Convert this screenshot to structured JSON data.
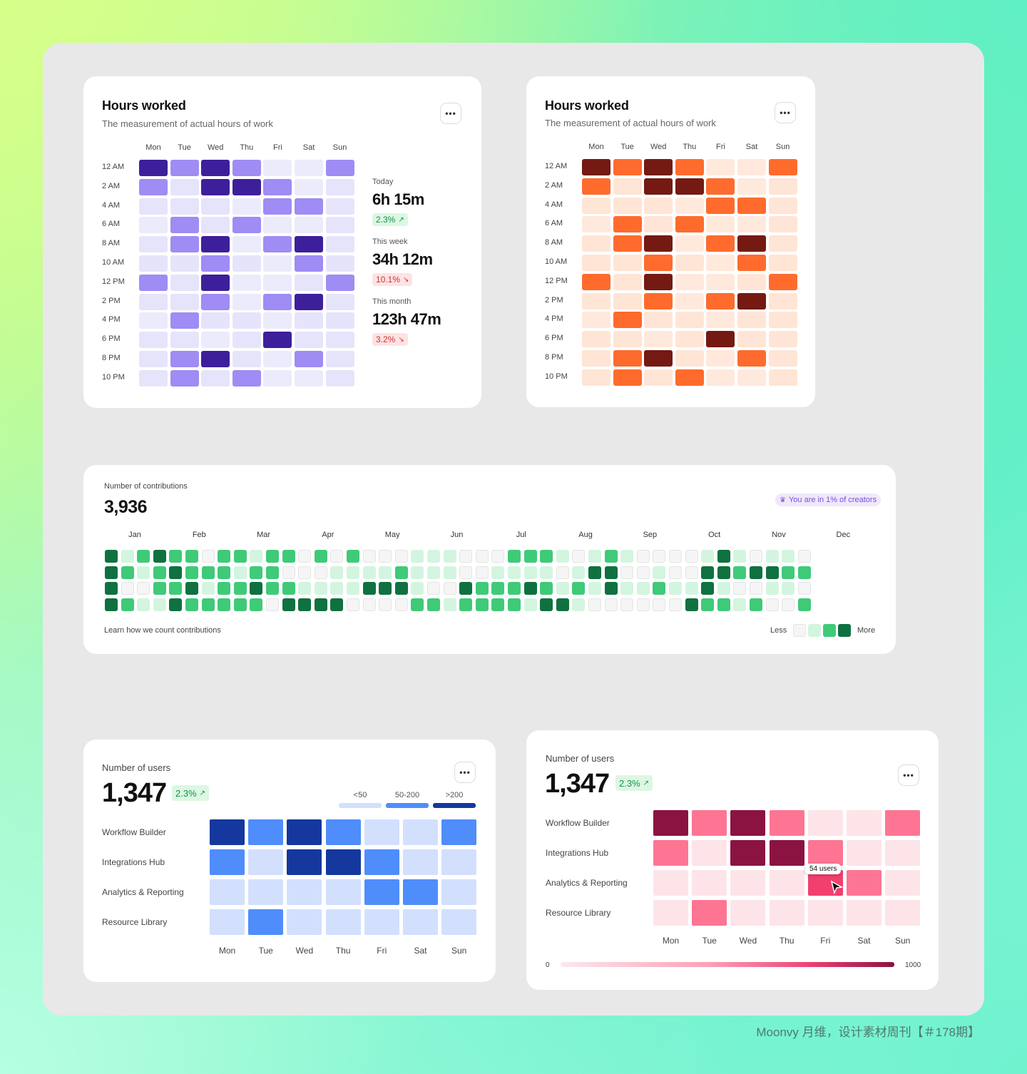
{
  "hours_card_common": {
    "title": "Hours worked",
    "subtitle": "The measurement of actual hours of work",
    "days": [
      "Mon",
      "Tue",
      "Wed",
      "Thu",
      "Fri",
      "Sat",
      "Sun"
    ],
    "hours": [
      "12 AM",
      "2 AM",
      "4 AM",
      "6 AM",
      "8 AM",
      "10 AM",
      "12 PM",
      "2 PM",
      "4 PM",
      "6 PM",
      "8 PM",
      "10 PM"
    ],
    "levels": [
      [
        3,
        2,
        3,
        2,
        0,
        0,
        2
      ],
      [
        2,
        1,
        3,
        3,
        2,
        0,
        1
      ],
      [
        1,
        1,
        1,
        0,
        2,
        2,
        1
      ],
      [
        0,
        2,
        1,
        2,
        0,
        0,
        1
      ],
      [
        1,
        2,
        3,
        0,
        2,
        3,
        1
      ],
      [
        1,
        1,
        2,
        1,
        0,
        2,
        1
      ],
      [
        2,
        1,
        3,
        0,
        0,
        1,
        2
      ],
      [
        1,
        1,
        2,
        0,
        2,
        3,
        1
      ],
      [
        0,
        2,
        1,
        1,
        0,
        1,
        1
      ],
      [
        1,
        1,
        0,
        1,
        3,
        1,
        1
      ],
      [
        1,
        2,
        3,
        1,
        0,
        2,
        1
      ],
      [
        1,
        2,
        1,
        2,
        0,
        0,
        1
      ]
    ]
  },
  "hours_card_purple": {
    "colors": [
      "#ecebfb",
      "#e6e4fa",
      "#9f8cf4",
      "#3d1f9b"
    ],
    "stats": [
      {
        "label": "Today",
        "value": "6h 15m",
        "change": "2.3%",
        "direction": "up"
      },
      {
        "label": "This week",
        "value": "34h 12m",
        "change": "10.1%",
        "direction": "down"
      },
      {
        "label": "This month",
        "value": "123h 47m",
        "change": "3.2%",
        "direction": "down"
      }
    ]
  },
  "hours_card_orange": {
    "colors": [
      "#ffe9dc",
      "#ffe5d5",
      "#ff6b2d",
      "#741a12"
    ]
  },
  "contributions": {
    "label": "Number of contributions",
    "total": "3,936",
    "badge": "You are in 1% of creators",
    "months": [
      "Jan",
      "Feb",
      "Mar",
      "Apr",
      "May",
      "Jun",
      "Jul",
      "Aug",
      "Sep",
      "Oct",
      "Nov",
      "Dec"
    ],
    "footer_link": "Learn how we count contributions",
    "legend_less": "Less",
    "legend_more": "More",
    "colors": [
      "#f5f5f5",
      "#d3f5df",
      "#3fca78",
      "#0f7140"
    ],
    "weeks": [
      [
        3,
        3,
        3,
        3
      ],
      [
        1,
        2,
        0,
        2
      ],
      [
        2,
        1,
        0,
        1
      ],
      [
        3,
        2,
        2,
        1
      ],
      [
        2,
        3,
        2,
        3
      ],
      [
        2,
        2,
        3,
        2
      ],
      [
        0,
        2,
        1,
        2
      ],
      [
        2,
        2,
        2,
        2
      ],
      [
        2,
        1,
        2,
        2
      ],
      [
        1,
        2,
        3,
        2
      ],
      [
        2,
        2,
        2,
        0
      ],
      [
        2,
        0,
        2,
        3
      ],
      [
        0,
        0,
        1,
        3
      ],
      [
        2,
        0,
        1,
        3
      ],
      [
        0,
        1,
        1,
        3
      ],
      [
        2,
        1,
        1,
        0
      ],
      [
        0,
        1,
        3,
        0
      ],
      [
        0,
        1,
        3,
        0
      ],
      [
        0,
        2,
        3,
        0
      ],
      [
        1,
        1,
        1,
        2
      ],
      [
        1,
        1,
        0,
        2
      ],
      [
        1,
        1,
        0,
        1
      ],
      [
        0,
        0,
        3,
        2
      ],
      [
        0,
        0,
        2,
        2
      ],
      [
        0,
        1,
        2,
        2
      ],
      [
        2,
        1,
        2,
        2
      ],
      [
        2,
        1,
        3,
        1
      ],
      [
        2,
        1,
        2,
        3
      ],
      [
        1,
        0,
        1,
        3
      ],
      [
        0,
        1,
        2,
        1
      ],
      [
        1,
        3,
        1,
        0
      ],
      [
        2,
        3,
        3,
        0
      ],
      [
        1,
        0,
        1,
        0
      ],
      [
        0,
        0,
        1,
        0
      ],
      [
        0,
        1,
        2,
        0
      ],
      [
        0,
        0,
        1,
        0
      ],
      [
        0,
        0,
        1,
        3
      ],
      [
        1,
        3,
        3,
        2
      ],
      [
        3,
        3,
        1,
        2
      ],
      [
        1,
        2,
        0,
        1
      ],
      [
        0,
        3,
        0,
        2
      ],
      [
        1,
        3,
        1,
        0
      ],
      [
        1,
        2,
        1,
        0
      ],
      [
        0,
        2,
        0,
        2
      ]
    ]
  },
  "users_card_blue": {
    "label": "Number of users",
    "total": "1,347",
    "change": "2.3%",
    "legend": [
      "<50",
      "50-200",
      ">200"
    ],
    "legend_colors": [
      "#d2e0fd",
      "#4f8dfb",
      "#14389e"
    ],
    "rows": [
      "Workflow Builder",
      "Integrations Hub",
      "Analytics & Reporting",
      "Resource Library"
    ],
    "days": [
      "Mon",
      "Tue",
      "Wed",
      "Thu",
      "Fri",
      "Sat",
      "Sun"
    ],
    "levels": [
      [
        2,
        1,
        2,
        1,
        0,
        0,
        1
      ],
      [
        1,
        0,
        2,
        2,
        1,
        0,
        0
      ],
      [
        0,
        0,
        0,
        0,
        1,
        1,
        0
      ],
      [
        0,
        1,
        0,
        0,
        0,
        0,
        0
      ]
    ]
  },
  "users_card_pink": {
    "label": "Number of users",
    "total": "1,347",
    "change": "2.3%",
    "rows": [
      "Workflow Builder",
      "Integrations Hub",
      "Analytics & Reporting",
      "Resource Library"
    ],
    "days": [
      "Mon",
      "Tue",
      "Wed",
      "Thu",
      "Fri",
      "Sat",
      "Sun"
    ],
    "colors": [
      "#fde4e8",
      "#fd7593",
      "#8b1342",
      "#f1406e"
    ],
    "levels": [
      [
        2,
        1,
        2,
        1,
        0,
        0,
        1
      ],
      [
        1,
        0,
        2,
        2,
        1,
        0,
        0
      ],
      [
        0,
        0,
        0,
        0,
        3,
        1,
        0
      ],
      [
        0,
        1,
        0,
        0,
        0,
        0,
        0
      ]
    ],
    "tooltip": "54 users",
    "scale_min": "0",
    "scale_max": "1000"
  },
  "watermark": "Moonvy 月维，设计素材周刊【＃178期】"
}
